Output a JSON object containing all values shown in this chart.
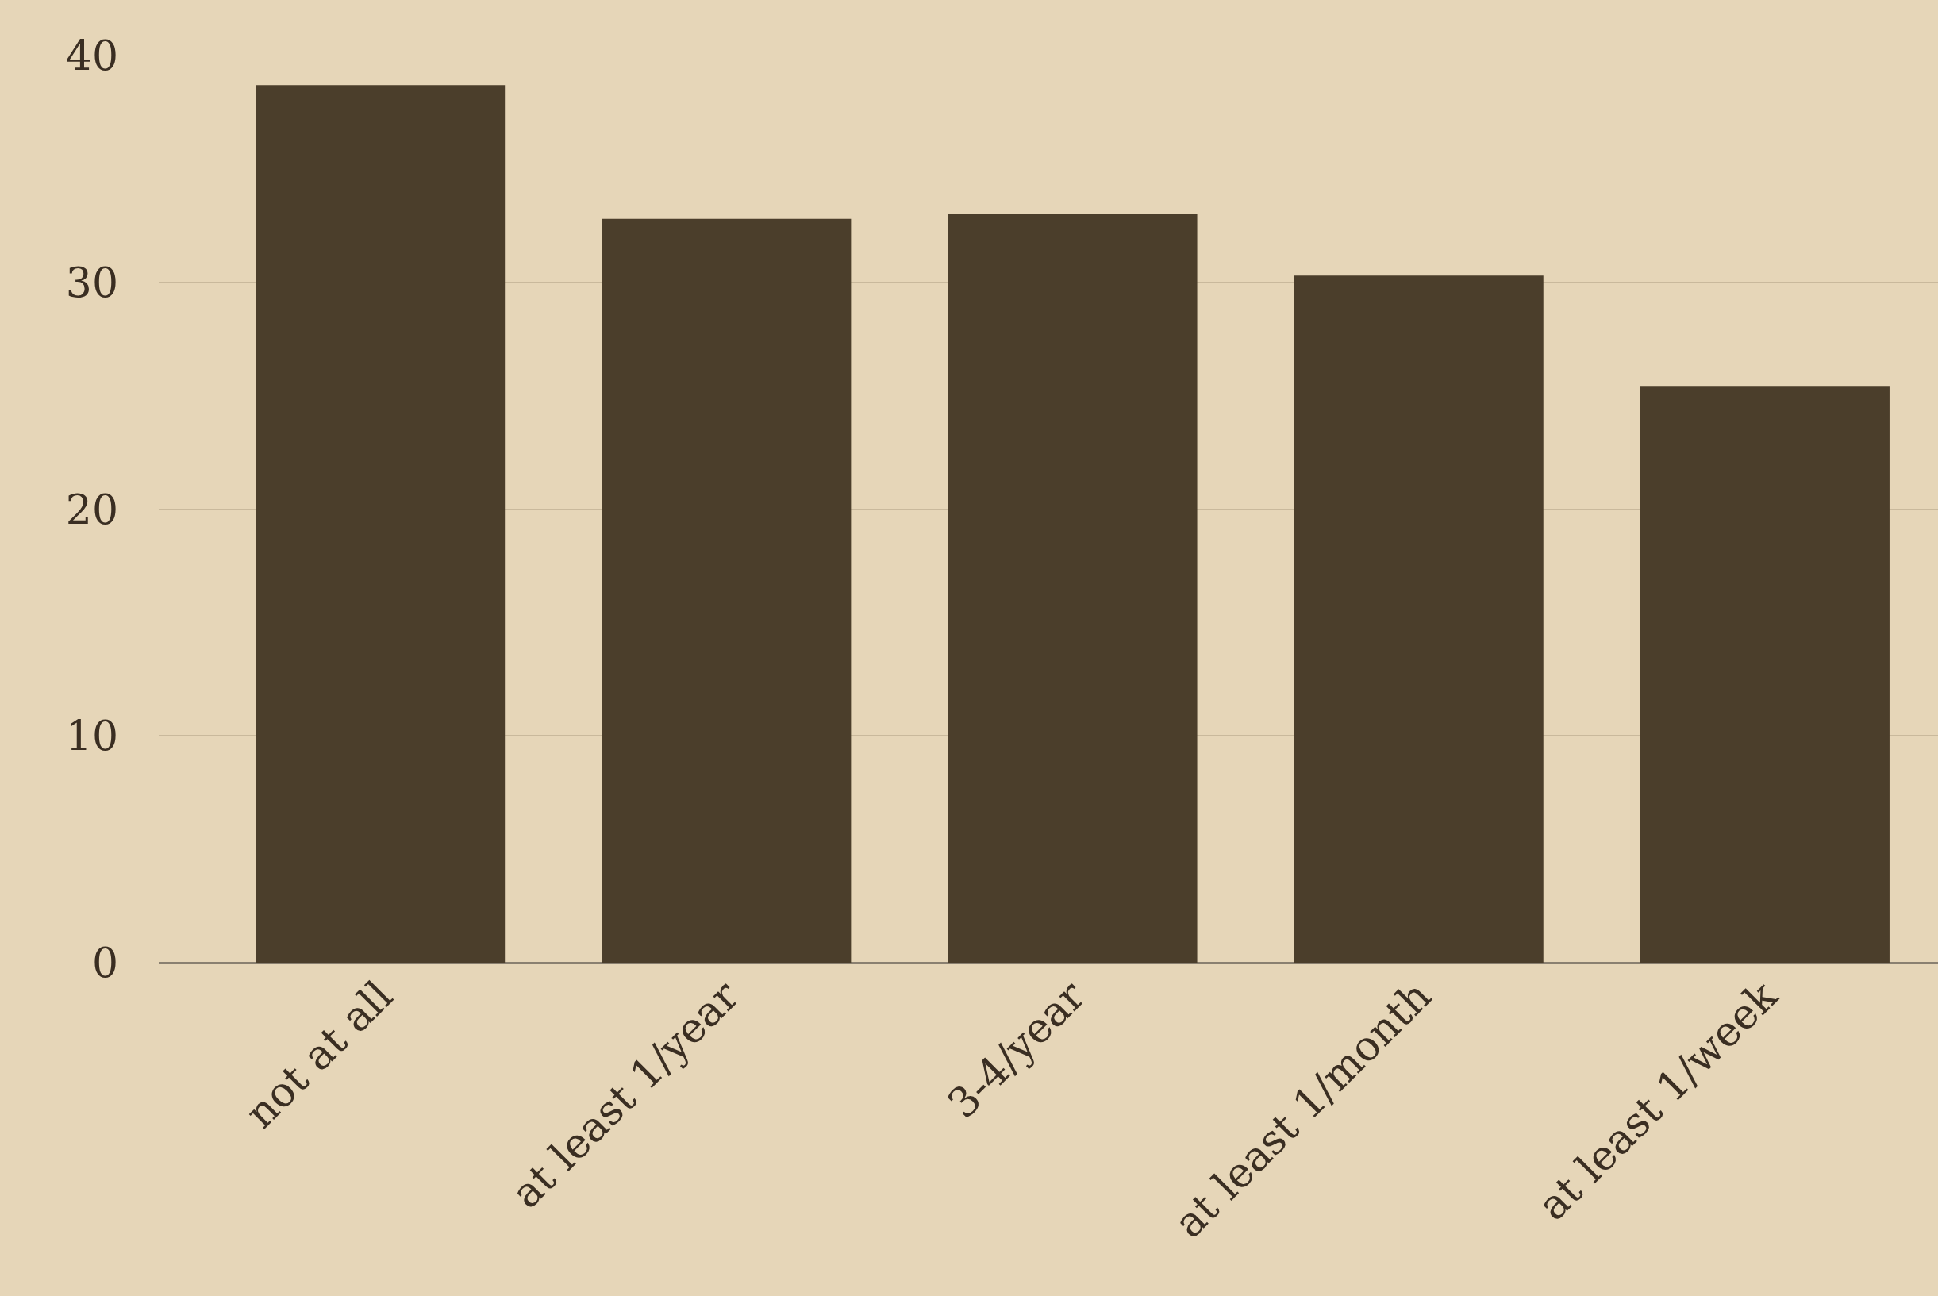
{
  "chart_data": {
    "type": "bar",
    "categories": [
      "not at all",
      "at least 1/year",
      "3-4/year",
      "at least 1/month",
      "at least 1/week"
    ],
    "values": [
      38.7,
      32.8,
      33.0,
      30.3,
      25.4
    ],
    "color": "#4b3e2b",
    "ylim": [
      0,
      40
    ],
    "yticks": [
      0,
      10,
      20,
      30,
      40
    ],
    "grid": "y"
  }
}
